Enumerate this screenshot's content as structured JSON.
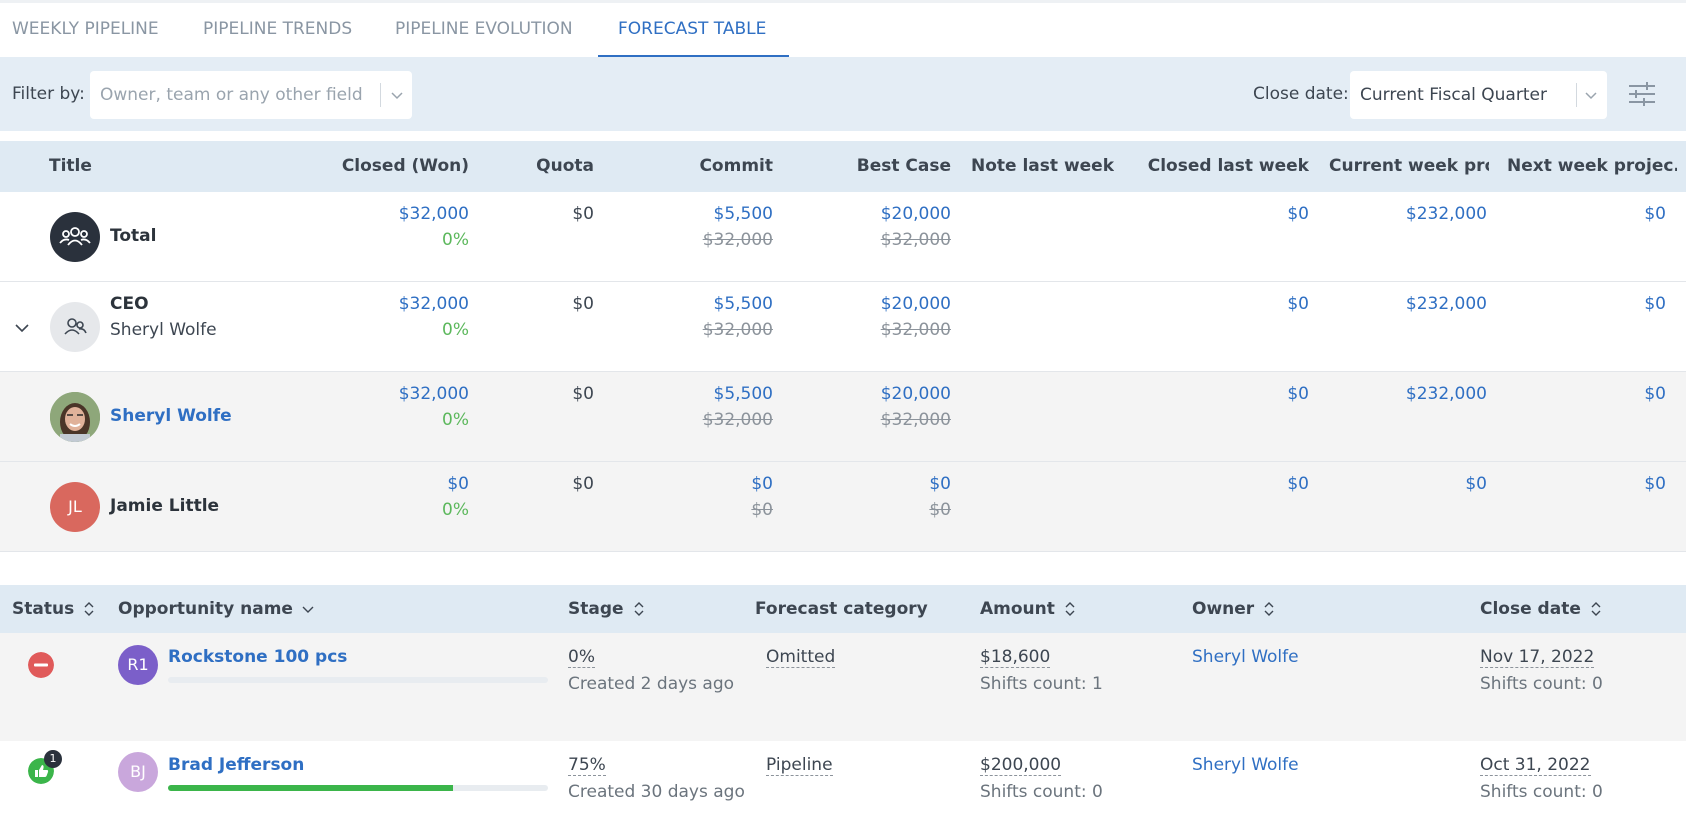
{
  "tabs": [
    {
      "label": "WEEKLY PIPELINE",
      "active": false
    },
    {
      "label": "PIPELINE TRENDS",
      "active": false
    },
    {
      "label": "PIPELINE EVOLUTION",
      "active": false
    },
    {
      "label": "FORECAST TABLE",
      "active": true
    }
  ],
  "filter": {
    "label": "Filter by:",
    "placeholder": "Owner, team or any other field",
    "close_date_label": "Close date:",
    "close_date_value": "Current Fiscal Quarter"
  },
  "forecast_table": {
    "columns": [
      "Title",
      "Closed (Won)",
      "Quota",
      "Commit",
      "Best Case",
      "Note last week",
      "Closed last week",
      "Current week pro...",
      "Next week projec..."
    ],
    "rows": [
      {
        "name": "Total",
        "subtitle": "",
        "avatar": "team-icon",
        "closed_won": "$32,000",
        "closed_pct": "0%",
        "quota": "$0",
        "commit": "$5,500",
        "commit_prev": "$32,000",
        "best_case": "$20,000",
        "best_case_prev": "$32,000",
        "note_last_week": "",
        "closed_last_week": "$0",
        "current_week": "$232,000",
        "next_week": "$0"
      },
      {
        "name": "CEO",
        "subtitle": "Sheryl Wolfe",
        "avatar": "group-user-icon",
        "closed_won": "$32,000",
        "closed_pct": "0%",
        "quota": "$0",
        "commit": "$5,500",
        "commit_prev": "$32,000",
        "best_case": "$20,000",
        "best_case_prev": "$32,000",
        "note_last_week": "",
        "closed_last_week": "$0",
        "current_week": "$232,000",
        "next_week": "$0"
      },
      {
        "name": "Sheryl Wolfe",
        "subtitle": "",
        "avatar": "photo",
        "closed_won": "$32,000",
        "closed_pct": "0%",
        "quota": "$0",
        "commit": "$5,500",
        "commit_prev": "$32,000",
        "best_case": "$20,000",
        "best_case_prev": "$32,000",
        "note_last_week": "",
        "closed_last_week": "$0",
        "current_week": "$232,000",
        "next_week": "$0"
      },
      {
        "name": "Jamie Little",
        "subtitle": "",
        "avatar": "JL",
        "closed_won": "$0",
        "closed_pct": "0%",
        "quota": "$0",
        "commit": "$0",
        "commit_prev": "$0",
        "best_case": "$0",
        "best_case_prev": "$0",
        "note_last_week": "",
        "closed_last_week": "$0",
        "current_week": "$0",
        "next_week": "$0"
      }
    ]
  },
  "opportunities": {
    "columns": [
      "Status",
      "Opportunity name",
      "Stage",
      "Forecast category",
      "Amount",
      "Owner",
      "Close date"
    ],
    "rows": [
      {
        "status": "omitted",
        "initials": "R1",
        "avatar_color": "#7b5fc9",
        "name": "Rockstone 100 pcs",
        "progress": 0,
        "stage": "0%",
        "created": "Created 2 days ago",
        "forecast_category": "Omitted",
        "amount": "$18,600",
        "amount_shifts": "Shifts count: 1",
        "owner": "Sheryl Wolfe",
        "close_date": "Nov 17, 2022",
        "close_shifts": "Shifts count: 0"
      },
      {
        "status": "thumbs-up",
        "badge": "1",
        "initials": "BJ",
        "avatar_color": "#c9a7dc",
        "name": "Brad Jefferson",
        "progress": 0.75,
        "stage": "75%",
        "created": "Created 30 days ago",
        "forecast_category": "Pipeline",
        "amount": "$200,000",
        "amount_shifts": "Shifts count: 0",
        "owner": "Sheryl Wolfe",
        "close_date": "Oct 31, 2022",
        "close_shifts": "Shifts count: 0"
      }
    ]
  },
  "colors": {
    "accent": "#2f6fc3",
    "positive": "#5cb85c",
    "danger": "#e05a5a",
    "success": "#3bb54a"
  }
}
